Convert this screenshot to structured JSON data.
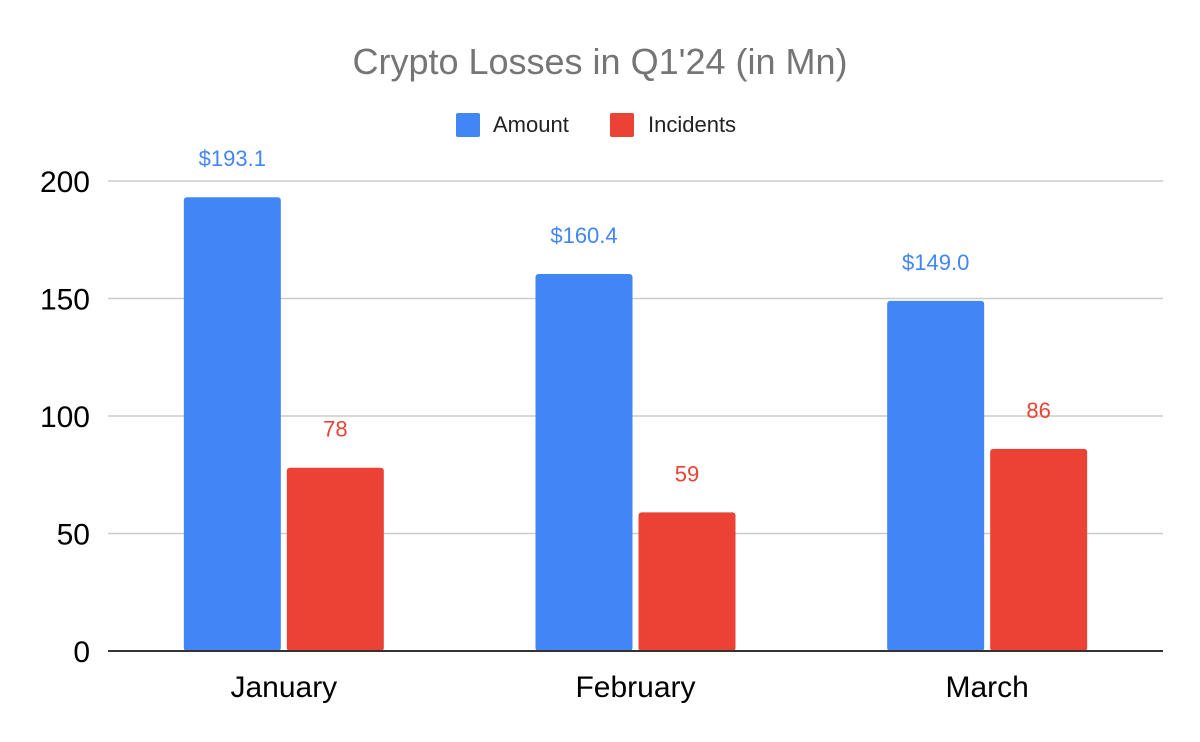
{
  "chart_data": {
    "type": "bar",
    "title": "Crypto Losses in Q1'24 (in Mn)",
    "xlabel": "",
    "ylabel": "",
    "categories": [
      "January",
      "February",
      "March"
    ],
    "series": [
      {
        "name": "Amount",
        "color": "#4285f4",
        "values": [
          193.1,
          160.4,
          149.0
        ],
        "data_labels": [
          "$193.1",
          "$160.4",
          "$149.0"
        ]
      },
      {
        "name": "Incidents",
        "color": "#ea4335",
        "values": [
          78,
          59,
          86
        ],
        "data_labels": [
          "78",
          "59",
          "86"
        ]
      }
    ],
    "ylim": [
      0,
      200
    ],
    "yticks": [
      0,
      50,
      100,
      150,
      200
    ],
    "ytick_labels": [
      "0",
      "50",
      "100",
      "150",
      "200"
    ],
    "grid": true,
    "legend_position": "top-center"
  }
}
